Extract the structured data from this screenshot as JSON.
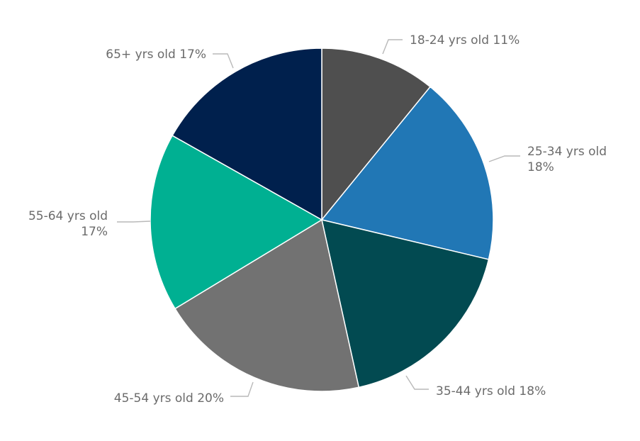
{
  "chart_data": {
    "type": "pie",
    "categories": [
      "18-24 yrs old",
      "25-34 yrs old",
      "35-44 yrs old",
      "45-54 yrs old",
      "55-64 yrs old",
      "65+ yrs old"
    ],
    "values": [
      11,
      18,
      18,
      20,
      17,
      17
    ],
    "value_labels": [
      "11%",
      "18%",
      "18%",
      "20%",
      "17%",
      "17%"
    ],
    "colors": [
      "#4f4f4f",
      "#2177b5",
      "#024a51",
      "#727272",
      "#00b092",
      "#00204d"
    ],
    "start": "12 o'clock",
    "direction": "clockwise",
    "legend": "none",
    "labels": [
      {
        "category": "18-24 yrs old",
        "lines": [
          "18-24 yrs old 11%"
        ]
      },
      {
        "category": "25-34 yrs old",
        "lines": [
          "25-34 yrs old",
          "18%"
        ]
      },
      {
        "category": "35-44 yrs old",
        "lines": [
          "35-44 yrs old 18%"
        ]
      },
      {
        "category": "45-54 yrs old",
        "lines": [
          "45-54 yrs old 20%"
        ]
      },
      {
        "category": "55-64 yrs old",
        "lines": [
          "55-64 yrs old",
          "17%"
        ]
      },
      {
        "category": "65+ yrs old",
        "lines": [
          "65+ yrs old 17%"
        ]
      }
    ]
  }
}
